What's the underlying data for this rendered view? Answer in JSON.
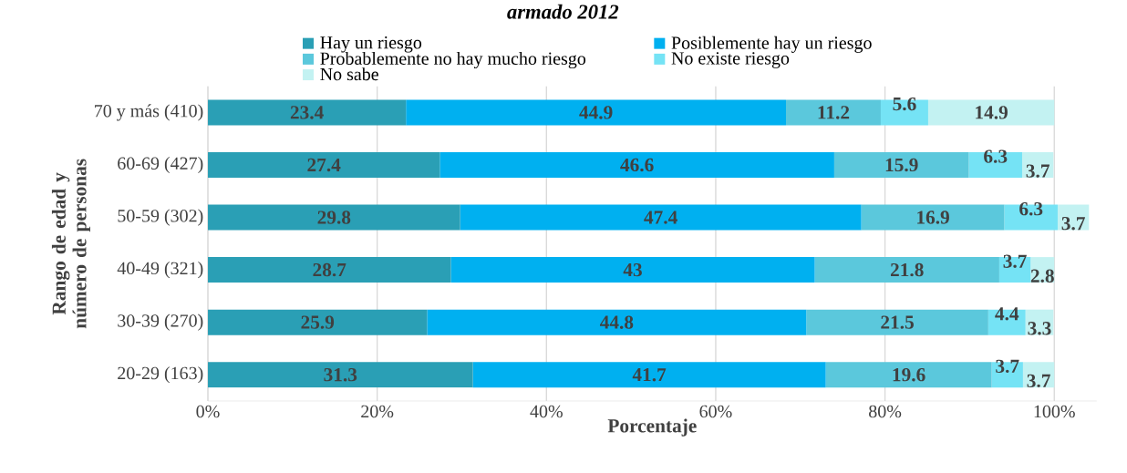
{
  "chart_data": {
    "type": "bar",
    "orientation": "horizontal",
    "stacked": true,
    "title": "armado 2012",
    "xlabel": "Porcentaje",
    "ylabel": "Rango de edad y número de personas",
    "categories": [
      "70 y más (410)",
      "60-69 (427)",
      "50-59 (302)",
      "40-49 (321)",
      "30-39 (270)",
      "20-29 (163)"
    ],
    "series": [
      {
        "name": "Hay un riesgo",
        "color": "#2a9fb5",
        "values": [
          23.4,
          27.4,
          29.8,
          28.7,
          25.9,
          31.3
        ]
      },
      {
        "name": "Posiblemente hay un riesgo",
        "color": "#00b0f0",
        "values": [
          44.9,
          46.6,
          47.4,
          43,
          44.8,
          41.7
        ]
      },
      {
        "name": "Probablemente no hay mucho riesgo",
        "color": "#5bc8dc",
        "values": [
          11.2,
          15.9,
          16.9,
          21.8,
          21.5,
          19.6
        ]
      },
      {
        "name": "No existe riesgo",
        "color": "#75e3f5",
        "values": [
          5.6,
          6.3,
          6.3,
          3.7,
          4.4,
          3.7
        ]
      },
      {
        "name": "No sabe",
        "color": "#c3f2f2",
        "values": [
          14.9,
          3.7,
          3.7,
          2.8,
          3.3,
          3.7
        ]
      }
    ],
    "xlim": [
      0,
      105
    ],
    "xticks": [
      {
        "value": 0,
        "label": "0%"
      },
      {
        "value": 20,
        "label": "20%"
      },
      {
        "value": 40,
        "label": "40%"
      },
      {
        "value": 60,
        "label": "60%"
      },
      {
        "value": 80,
        "label": "80%"
      },
      {
        "value": 100,
        "label": "100%"
      }
    ],
    "data_labels": true,
    "grid": "x",
    "legend": "top"
  }
}
